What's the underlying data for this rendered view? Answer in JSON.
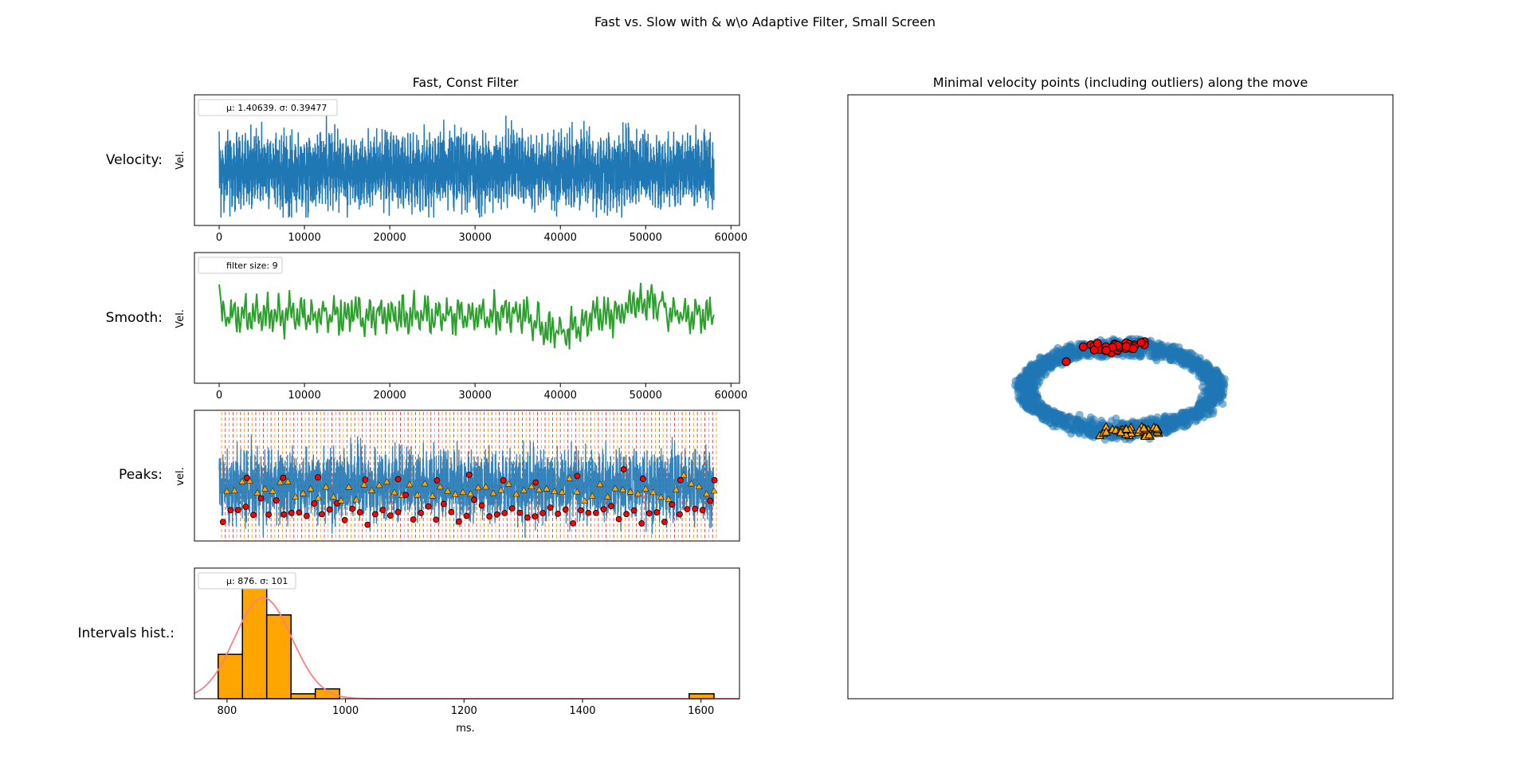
{
  "suptitle": "Fast vs. Slow with & w\\o Adaptive Filter, Small Screen",
  "colors": {
    "velocity": "#1f77b4",
    "smooth": "#2ca02c",
    "hist_fill": "#ffa500",
    "fit_curve": "#ff7f7f",
    "min_marker": "#ff0000",
    "max_marker": "#ffa500",
    "peak_line_a": "#ff8c00",
    "peak_line_b": "#d62728"
  },
  "chart_data": [
    {
      "id": "velocity",
      "type": "line",
      "title": "Fast, Const Filter",
      "row_label": "Velocity:",
      "ylabel": "Vel.",
      "xlim": [
        -2900,
        61000
      ],
      "xticks": [
        0,
        10000,
        20000,
        30000,
        40000,
        50000,
        60000
      ],
      "legend": "μ: 1.40639.  σ: 0.39477",
      "legend_position": "upper left",
      "series": [
        {
          "x_range": [
            0,
            58000
          ],
          "mean": 1.40639,
          "std": 0.39477,
          "pattern": "high-frequency oscillation, ~3000 samples"
        }
      ]
    },
    {
      "id": "smooth",
      "type": "line",
      "row_label": "Smooth:",
      "ylabel": "Vel.",
      "xlim": [
        -2900,
        61000
      ],
      "xticks": [
        0,
        10000,
        20000,
        30000,
        40000,
        50000,
        60000
      ],
      "legend": "filter size: 9",
      "legend_position": "upper left",
      "series": [
        {
          "x_range": [
            0,
            58000
          ],
          "pattern": "smoothed oscillation",
          "notable": "dip near x=40000, peak near x=50000"
        }
      ]
    },
    {
      "id": "peaks",
      "type": "line",
      "row_label": "Peaks:",
      "ylabel": "vel.",
      "grid": false,
      "annotations": "alternating orange and red dashed vertical lines at each peak; red circles at minima, orange triangles at maxima"
    },
    {
      "id": "intervals",
      "type": "bar",
      "row_label": "Intervals hist.:",
      "xlabel": "ms.",
      "xlim": [
        745,
        1665
      ],
      "xticks": [
        800,
        1000,
        1200,
        1400,
        1600
      ],
      "legend": "μ: 876.  σ: 101",
      "legend_position": "upper left",
      "bins": [
        {
          "x0": 785,
          "x1": 826,
          "count": 9
        },
        {
          "x0": 826,
          "x1": 867,
          "count": 25
        },
        {
          "x0": 867,
          "x1": 908,
          "count": 17
        },
        {
          "x0": 908,
          "x1": 949,
          "count": 1
        },
        {
          "x0": 949,
          "x1": 990,
          "count": 2
        },
        {
          "x0": 1580,
          "x1": 1622,
          "count": 1
        }
      ],
      "fit": {
        "type": "normal",
        "mu": 861,
        "sigma": 48,
        "peak_count": 20.5
      }
    },
    {
      "id": "min_points",
      "type": "scatter",
      "title": "Minimal velocity points (including outliers) along the move",
      "axes": "hidden",
      "series": [
        {
          "name": "trajectory",
          "shape": "ellipse ring",
          "color": "#1f77b4"
        },
        {
          "name": "minima_top",
          "marker": "circle",
          "color": "#ff0000"
        },
        {
          "name": "minima_bottom",
          "marker": "triangle",
          "color": "#ffa500"
        }
      ]
    }
  ]
}
